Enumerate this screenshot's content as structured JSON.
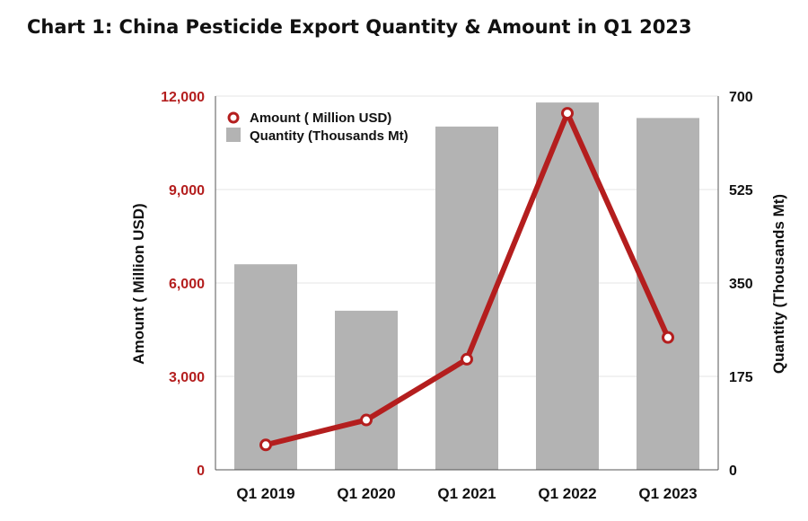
{
  "chart_data": {
    "type": "bar+line",
    "title": "Chart 1: China Pesticide Export Quantity & Amount in Q1 2023",
    "categories": [
      "Q1 2019",
      "Q1 2020",
      "Q1 2021",
      "Q1 2022",
      "Q1 2023"
    ],
    "series": [
      {
        "name": "Quantity (Thousands Mt)",
        "type": "bar",
        "axis": "right",
        "color": "#b3b3b3",
        "values": [
          385,
          298,
          643,
          688,
          659
        ]
      },
      {
        "name": "Amount ( Million USD)",
        "type": "line",
        "axis": "left",
        "color": "#b41e1e",
        "values": [
          800,
          1600,
          3550,
          11450,
          4250
        ]
      }
    ],
    "y_left": {
      "label": "Amount ( Million USD)",
      "range": [
        0,
        12000
      ],
      "ticks": [
        0,
        3000,
        6000,
        9000,
        12000
      ],
      "tick_labels": [
        "0",
        "3,000",
        "6,000",
        "9,000",
        "12,000"
      ],
      "color": "#b41e1e"
    },
    "y_right": {
      "label": "Quantity (Thousands Mt)",
      "range": [
        0,
        700
      ],
      "ticks": [
        0,
        175,
        350,
        525,
        700
      ],
      "tick_labels": [
        "0",
        "175",
        "350",
        "525",
        "700"
      ]
    },
    "grid": true,
    "legend_position": "top-left"
  }
}
